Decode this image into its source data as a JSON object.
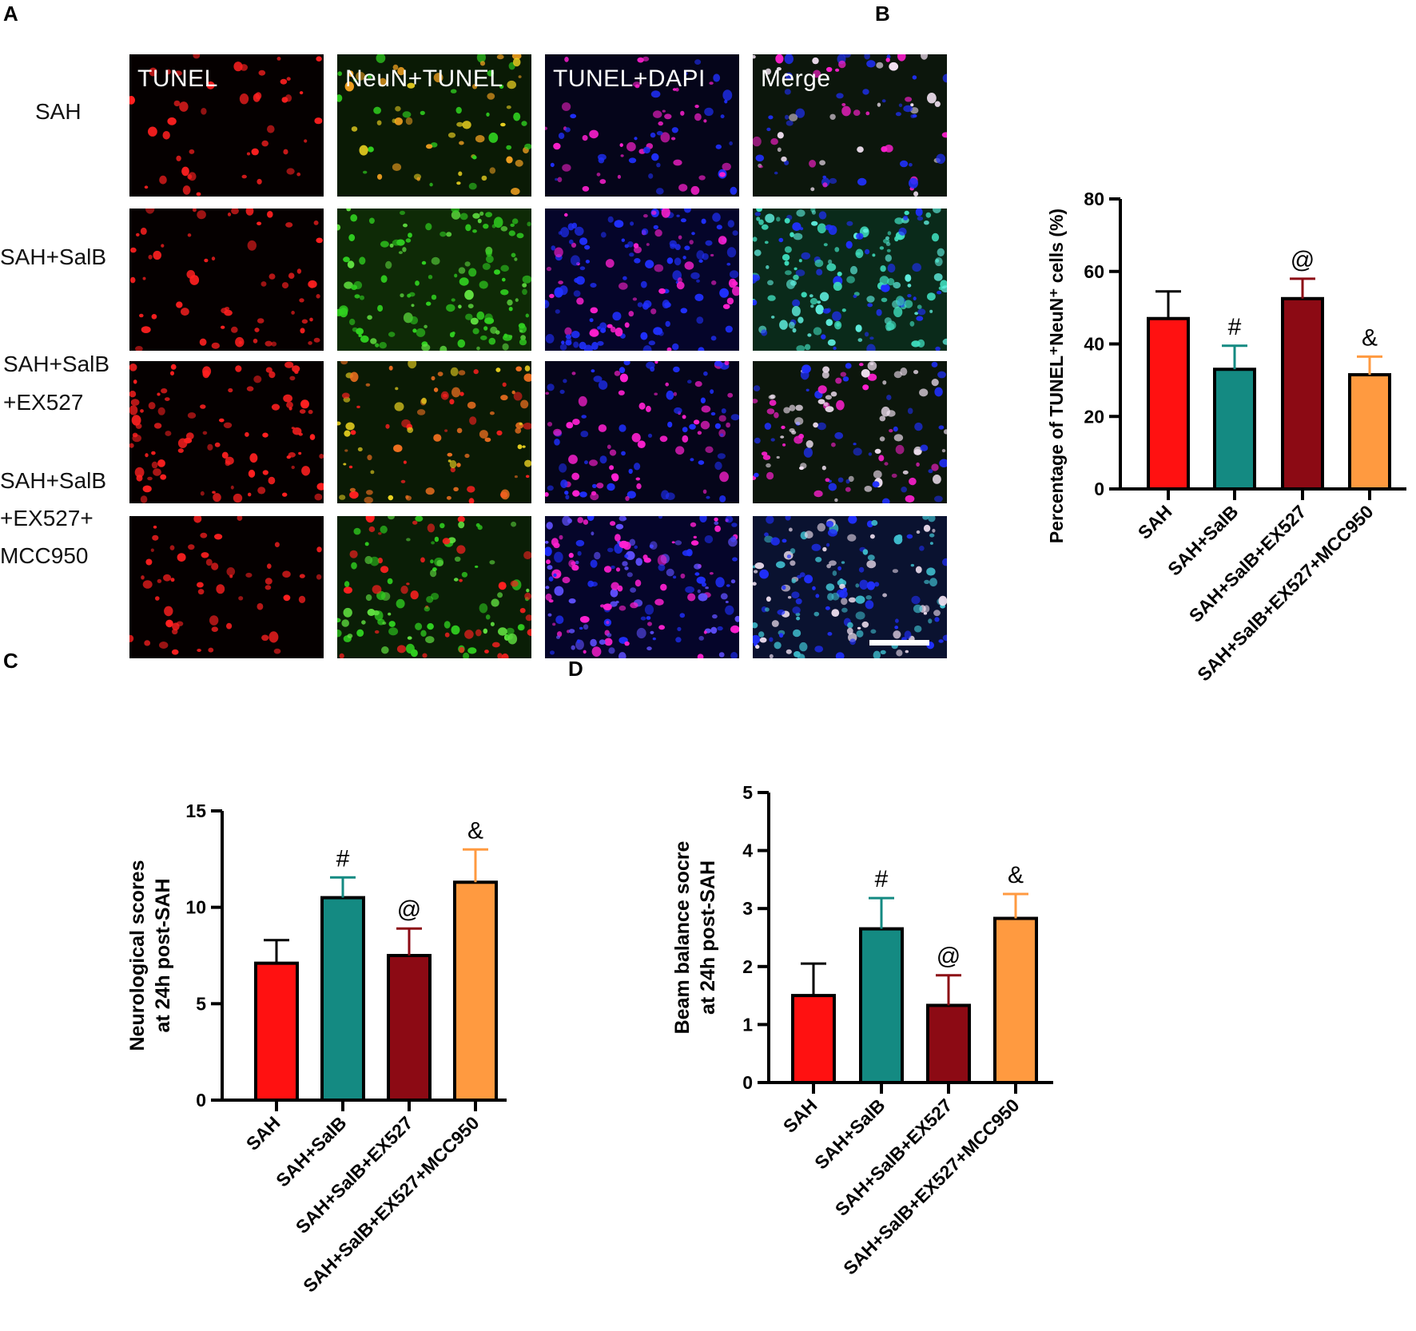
{
  "panels": {
    "A": "A",
    "B": "B",
    "C": "C",
    "D": "D"
  },
  "microscopy": {
    "channels": [
      "TUNEL",
      "NeuN+TUNEL",
      "TUNEL+DAPI",
      "Merge"
    ],
    "rows": [
      {
        "label_lines": [
          "SAH"
        ]
      },
      {
        "label_lines": [
          "SAH+SalB"
        ]
      },
      {
        "label_lines": [
          "SAH+SalB",
          "+EX527"
        ]
      },
      {
        "label_lines": [
          "SAH+SalB",
          "+EX527+",
          "MCC950"
        ]
      }
    ],
    "colors": {
      "tunel": "#ff2020",
      "neun": "#30d020",
      "dapi": "#2030ff",
      "neun_tunel": "#e8d020",
      "tunel_dapi": "#ff20d0",
      "merge": "#f0e0f0"
    }
  },
  "chart_data": [
    {
      "type": "bar",
      "panel": "B",
      "title": "",
      "ylabel": "Percentage of TUNEL⁺NeuN⁺ cells (%)",
      "xlabel": "",
      "ylim": [
        0,
        80
      ],
      "yticks": [
        0,
        20,
        40,
        60,
        80
      ],
      "categories": [
        "SAH",
        "SAH+SalB",
        "SAH+SalB+EX527",
        "SAH+SalB+EX527+MCC950"
      ],
      "values": [
        47,
        33,
        52.5,
        31.5
      ],
      "errors": [
        7.5,
        6.5,
        5.5,
        5
      ],
      "annotations": [
        "",
        "#",
        "@",
        "&"
      ],
      "colors": [
        "#ff1111",
        "#148a82",
        "#8c0a14",
        "#ff9a40"
      ]
    },
    {
      "type": "bar",
      "panel": "C",
      "title": "",
      "ylabel": "Neurological scores at 24h post-SAH",
      "ylabel_lines": [
        "Neurological scores",
        "at 24h post-SAH"
      ],
      "xlabel": "",
      "ylim": [
        0,
        15
      ],
      "yticks": [
        0,
        5,
        10,
        15
      ],
      "categories": [
        "SAH",
        "SAH+SalB",
        "SAH+SalB+EX527",
        "SAH+SalB+EX527+MCC950"
      ],
      "values": [
        7.1,
        10.5,
        7.5,
        11.3
      ],
      "errors": [
        1.2,
        1.05,
        1.4,
        1.7
      ],
      "annotations": [
        "",
        "#",
        "@",
        "&"
      ],
      "colors": [
        "#ff1111",
        "#148a82",
        "#8c0a14",
        "#ff9a40"
      ]
    },
    {
      "type": "bar",
      "panel": "D",
      "title": "",
      "ylabel": "Beam balance socre at 24h post-SAH",
      "ylabel_lines": [
        "Beam balance socre",
        "at 24h post-SAH"
      ],
      "xlabel": "",
      "ylim": [
        0,
        5
      ],
      "yticks": [
        0,
        1,
        2,
        3,
        4,
        5
      ],
      "categories": [
        "SAH",
        "SAH+SalB",
        "SAH+SalB+EX527",
        "SAH+SalB+EX527+MCC950"
      ],
      "values": [
        1.5,
        2.65,
        1.33,
        2.83
      ],
      "errors": [
        0.55,
        0.53,
        0.52,
        0.42
      ],
      "annotations": [
        "",
        "#",
        "@",
        "&"
      ],
      "colors": [
        "#ff1111",
        "#148a82",
        "#8c0a14",
        "#ff9a40"
      ]
    }
  ]
}
